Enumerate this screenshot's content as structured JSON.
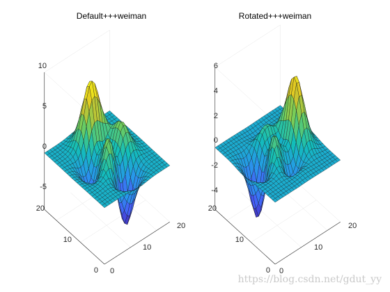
{
  "watermark": "https://blog.csdn.net/gdut_yy",
  "chart_data": [
    {
      "type": "surface",
      "surface_function": "peaks",
      "grid_size": [
        25,
        25
      ],
      "colormap": "parula",
      "title": "Default+++weiman",
      "x_ticks": [
        "0",
        "10",
        "20"
      ],
      "y_ticks": [
        "0",
        "10",
        "20"
      ],
      "z_ticks": [
        "10",
        "5",
        "0",
        "-5"
      ],
      "xlim": [
        0,
        25
      ],
      "ylim": [
        0,
        25
      ],
      "zlim": [
        -7,
        10
      ],
      "z_range": [
        -6.5,
        8.1
      ],
      "grid": true
    },
    {
      "type": "surface",
      "surface_function": "peaks (rotated)",
      "grid_size": [
        25,
        25
      ],
      "colormap": "parula",
      "title": "Rotated+++weiman",
      "x_ticks": [
        "0",
        "10",
        "20"
      ],
      "y_ticks": [
        "0",
        "10",
        "20"
      ],
      "z_ticks": [
        "6",
        "4",
        "2",
        "0",
        "-2",
        "-4"
      ],
      "xlim": [
        0,
        25
      ],
      "ylim": [
        0,
        25
      ],
      "zlim": [
        -5,
        6.5
      ],
      "z_range": [
        -4.5,
        6.1
      ],
      "grid": true
    }
  ]
}
